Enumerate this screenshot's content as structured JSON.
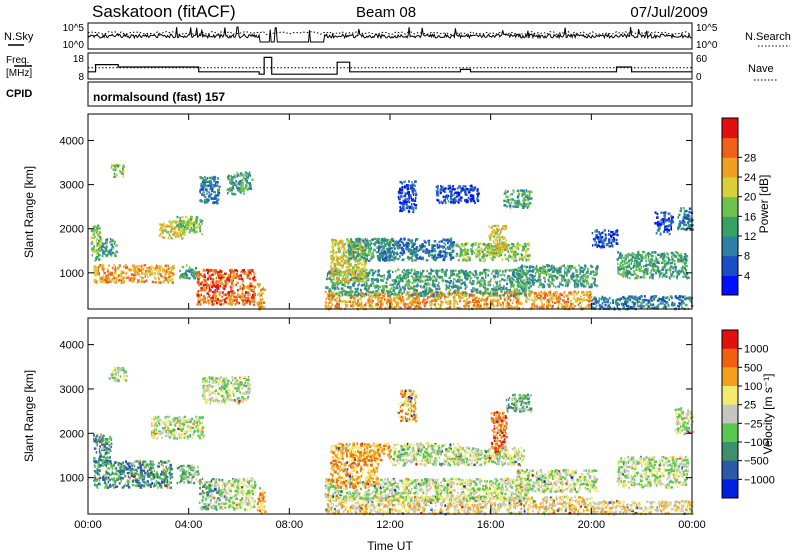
{
  "header": {
    "station": "Saskatoon (fitACF)",
    "beam": "Beam 08",
    "date": "07/Jul/2009"
  },
  "strip_nsky": {
    "left_label": "N.Sky",
    "right_label": "N.Search",
    "ticks_left": [
      "10^5",
      "10^0"
    ],
    "ticks_right": [
      "10^5",
      "10^0"
    ]
  },
  "strip_freq": {
    "left_label_line1": "Freq.",
    "left_label_line2": "[MHz]",
    "right_label": "Nave",
    "ticks_left": [
      "18",
      "8"
    ],
    "ticks_right": [
      "60",
      "0"
    ],
    "freq_steps": [
      {
        "t": 0.0,
        "mhz": 11
      },
      {
        "t": 0.3,
        "mhz": 14
      },
      {
        "t": 1.2,
        "mhz": 13
      },
      {
        "t": 4.4,
        "mhz": 11
      },
      {
        "t": 6.8,
        "mhz": 10
      },
      {
        "t": 7.0,
        "mhz": 17
      },
      {
        "t": 7.3,
        "mhz": 10
      },
      {
        "t": 9.9,
        "mhz": 15
      },
      {
        "t": 10.4,
        "mhz": 11
      },
      {
        "t": 14.8,
        "mhz": 12
      },
      {
        "t": 15.2,
        "mhz": 11
      },
      {
        "t": 21.0,
        "mhz": 13
      },
      {
        "t": 21.6,
        "mhz": 11
      },
      {
        "t": 24.0,
        "mhz": 11
      }
    ],
    "nave_level": 28
  },
  "cpid": {
    "label": "CPID",
    "value": "normalsound (fast) 157"
  },
  "chart_data": [
    {
      "type": "heatmap",
      "ylabel": "Slant Range [km]",
      "x_ticks": [
        "00:00",
        "04:00",
        "08:00",
        "12:00",
        "16:00",
        "20:00",
        "00:00"
      ],
      "xlim_hours": [
        0,
        24
      ],
      "y_ticks": [
        "1000",
        "2000",
        "3000",
        "4000"
      ],
      "ylim_km": [
        180,
        4600
      ],
      "colorbar": {
        "label": "Power [dB]",
        "ticks": [
          "4",
          "8",
          "12",
          "16",
          "20",
          "24",
          "28"
        ],
        "colors": [
          "#0010ff",
          "#1a4fc4",
          "#2e7fa6",
          "#37a064",
          "#6fc24d",
          "#d8cf3a",
          "#f0a020",
          "#ef6018",
          "#e01010"
        ]
      },
      "echo_regions": [
        {
          "t0": 0.1,
          "t1": 0.5,
          "r0": 1300,
          "r1": 2100,
          "level": 4
        },
        {
          "t0": 0.2,
          "t1": 3.4,
          "r0": 800,
          "r1": 1200,
          "level": 6
        },
        {
          "t0": 0.5,
          "t1": 1.1,
          "r0": 1400,
          "r1": 1800,
          "level": 3
        },
        {
          "t0": 0.9,
          "t1": 1.4,
          "r0": 3200,
          "r1": 3500,
          "level": 4
        },
        {
          "t0": 2.8,
          "t1": 3.9,
          "r0": 1800,
          "r1": 2200,
          "level": 5
        },
        {
          "t0": 3.5,
          "t1": 4.5,
          "r0": 1900,
          "r1": 2300,
          "level": 4
        },
        {
          "t0": 3.6,
          "t1": 4.3,
          "r0": 900,
          "r1": 1200,
          "level": 3
        },
        {
          "t0": 4.4,
          "t1": 5.2,
          "r0": 2600,
          "r1": 3200,
          "level": 2
        },
        {
          "t0": 4.3,
          "t1": 6.6,
          "r0": 300,
          "r1": 1100,
          "level": 7
        },
        {
          "t0": 5.5,
          "t1": 6.5,
          "r0": 2800,
          "r1": 3300,
          "level": 3
        },
        {
          "t0": 6.7,
          "t1": 7.0,
          "r0": 200,
          "r1": 800,
          "level": 6
        },
        {
          "t0": 9.4,
          "t1": 20.0,
          "r0": 200,
          "r1": 600,
          "level": 6
        },
        {
          "t0": 9.4,
          "t1": 17.5,
          "r0": 500,
          "r1": 1100,
          "level": 3
        },
        {
          "t0": 9.6,
          "t1": 11.0,
          "r0": 800,
          "r1": 1800,
          "level": 5
        },
        {
          "t0": 10.3,
          "t1": 12.0,
          "r0": 1300,
          "r1": 1800,
          "level": 3
        },
        {
          "t0": 11.5,
          "t1": 14.5,
          "r0": 1300,
          "r1": 1800,
          "level": 2
        },
        {
          "t0": 12.3,
          "t1": 13.0,
          "r0": 2400,
          "r1": 3100,
          "level": 1
        },
        {
          "t0": 13.8,
          "t1": 15.5,
          "r0": 2600,
          "r1": 3000,
          "level": 1
        },
        {
          "t0": 14.6,
          "t1": 17.5,
          "r0": 1300,
          "r1": 1700,
          "level": 4
        },
        {
          "t0": 15.9,
          "t1": 16.6,
          "r0": 1500,
          "r1": 2100,
          "level": 5
        },
        {
          "t0": 16.5,
          "t1": 17.6,
          "r0": 2500,
          "r1": 2900,
          "level": 3
        },
        {
          "t0": 17.0,
          "t1": 20.2,
          "r0": 700,
          "r1": 1200,
          "level": 3
        },
        {
          "t0": 20.0,
          "t1": 21.0,
          "r0": 1600,
          "r1": 2000,
          "level": 1
        },
        {
          "t0": 21.0,
          "t1": 23.8,
          "r0": 900,
          "r1": 1500,
          "level": 3
        },
        {
          "t0": 20.0,
          "t1": 24.0,
          "r0": 200,
          "r1": 500,
          "level": 2
        },
        {
          "t0": 22.5,
          "t1": 23.2,
          "r0": 1900,
          "r1": 2400,
          "level": 1
        },
        {
          "t0": 23.4,
          "t1": 24.0,
          "r0": 2000,
          "r1": 2500,
          "level": 2
        }
      ]
    },
    {
      "type": "heatmap",
      "xlabel": "Time UT",
      "ylabel": "Slant Range [km]",
      "x_ticks": [
        "00:00",
        "04:00",
        "08:00",
        "12:00",
        "16:00",
        "20:00",
        "00:00"
      ],
      "xlim_hours": [
        0,
        24
      ],
      "y_ticks": [
        "1000",
        "2000",
        "3000",
        "4000"
      ],
      "ylim_km": [
        180,
        4600
      ],
      "colorbar": {
        "label": "Velocity [m s⁻¹]",
        "ticks": [
          "1000",
          "500",
          "100",
          "25",
          "−25",
          "−100",
          "−500",
          "−1000"
        ],
        "colors": [
          "#0020e0",
          "#2a5aa8",
          "#3f8f6a",
          "#58c850",
          "#c6c6c0",
          "#f4ea70",
          "#f5a01c",
          "#f06010",
          "#e01010"
        ]
      },
      "echo_regions": [
        {
          "t0": 0.2,
          "t1": 3.3,
          "r0": 800,
          "r1": 1400,
          "level": 2
        },
        {
          "t0": 0.2,
          "t1": 0.9,
          "r0": 1300,
          "r1": 2000,
          "level": 2
        },
        {
          "t0": 0.8,
          "t1": 1.5,
          "r0": 3200,
          "r1": 3500,
          "level": 4
        },
        {
          "t0": 2.5,
          "t1": 4.6,
          "r0": 1900,
          "r1": 2400,
          "level": 4
        },
        {
          "t0": 3.5,
          "t1": 4.4,
          "r0": 900,
          "r1": 1300,
          "level": 3
        },
        {
          "t0": 4.4,
          "t1": 5.3,
          "r0": 300,
          "r1": 1000,
          "level": 3
        },
        {
          "t0": 5.3,
          "t1": 6.6,
          "r0": 300,
          "r1": 1000,
          "level": 4
        },
        {
          "t0": 4.5,
          "t1": 6.4,
          "r0": 2700,
          "r1": 3300,
          "level": 4
        },
        {
          "t0": 6.7,
          "t1": 7.0,
          "r0": 200,
          "r1": 800,
          "level": 6
        },
        {
          "t0": 9.4,
          "t1": 20.0,
          "r0": 200,
          "r1": 600,
          "level": 5
        },
        {
          "t0": 9.4,
          "t1": 17.5,
          "r0": 500,
          "r1": 1000,
          "level": 4
        },
        {
          "t0": 9.6,
          "t1": 11.5,
          "r0": 800,
          "r1": 1800,
          "level": 6
        },
        {
          "t0": 10.5,
          "t1": 12.0,
          "r0": 1400,
          "r1": 1800,
          "level": 6
        },
        {
          "t0": 12.0,
          "t1": 14.8,
          "r0": 1300,
          "r1": 1800,
          "level": 4
        },
        {
          "t0": 12.3,
          "t1": 13.0,
          "r0": 2300,
          "r1": 3000,
          "level": 6
        },
        {
          "t0": 14.5,
          "t1": 17.3,
          "r0": 1300,
          "r1": 1700,
          "level": 4
        },
        {
          "t0": 16.0,
          "t1": 16.6,
          "r0": 1600,
          "r1": 2500,
          "level": 7
        },
        {
          "t0": 16.6,
          "t1": 17.6,
          "r0": 2500,
          "r1": 2900,
          "level": 3
        },
        {
          "t0": 17.0,
          "t1": 20.2,
          "r0": 700,
          "r1": 1200,
          "level": 4
        },
        {
          "t0": 21.0,
          "t1": 23.8,
          "r0": 800,
          "r1": 1500,
          "level": 4
        },
        {
          "t0": 23.3,
          "t1": 24.0,
          "r0": 2000,
          "r1": 2600,
          "level": 4
        },
        {
          "t0": 20.0,
          "t1": 24.0,
          "r0": 200,
          "r1": 500,
          "level": 5
        }
      ]
    }
  ]
}
